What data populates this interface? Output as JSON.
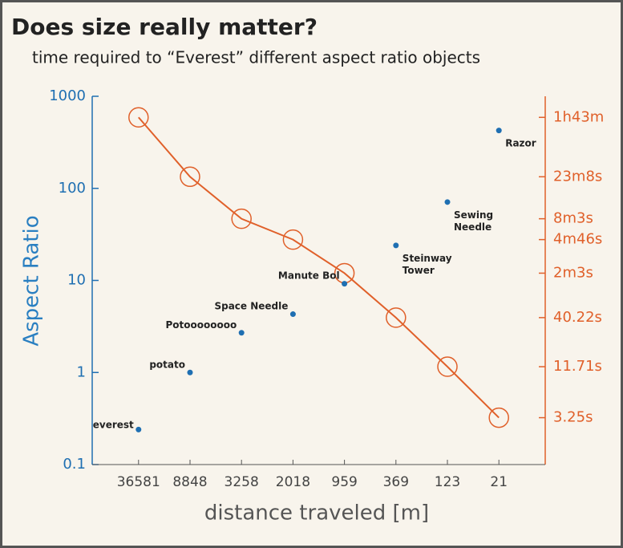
{
  "chart_data": {
    "type": "line",
    "title": "Does size really matter?",
    "subtitle": "time required to “Everest” different aspect ratio objects",
    "x_label": "distance traveled [m]",
    "y_label": "Aspect Ratio",
    "categories": [
      "36581",
      "8848",
      "3258",
      "2018",
      "959",
      "369",
      "123",
      "21"
    ],
    "ylim": [
      0.1,
      1000
    ],
    "yticks": [
      0.1,
      1,
      10,
      100,
      1000
    ],
    "log_y": true,
    "y2lim": [
      1,
      10500
    ],
    "log_y2": true,
    "y2ticks": [
      {
        "value": 6180,
        "label": "1h43m"
      },
      {
        "value": 1388,
        "label": "23m8s"
      },
      {
        "value": 483,
        "label": "8m3s"
      },
      {
        "value": 286,
        "label": "4m46s"
      },
      {
        "value": 123,
        "label": "2m3s"
      },
      {
        "value": 40.22,
        "label": "40.22s"
      },
      {
        "value": 11.71,
        "label": "11.71s"
      },
      {
        "value": 3.25,
        "label": "3.25s"
      }
    ],
    "points": {
      "color": "#1f6fb2",
      "values": [
        0.24,
        1.0,
        2.7,
        4.3,
        9.2,
        24,
        71,
        425
      ],
      "labels": [
        [
          "everest"
        ],
        [
          "potato"
        ],
        [
          "Potoooooooo"
        ],
        [
          "Space Needle"
        ],
        [
          "Manute Bol"
        ],
        [
          "Steinway",
          "Tower"
        ],
        [
          "Sewing",
          "Needle"
        ],
        [
          "Razor"
        ]
      ]
    },
    "series": [
      {
        "color": "#e0602a",
        "axis": "y2",
        "values": [
          6180,
          1388,
          483,
          286,
          123,
          40.22,
          11.71,
          3.25
        ]
      }
    ]
  }
}
